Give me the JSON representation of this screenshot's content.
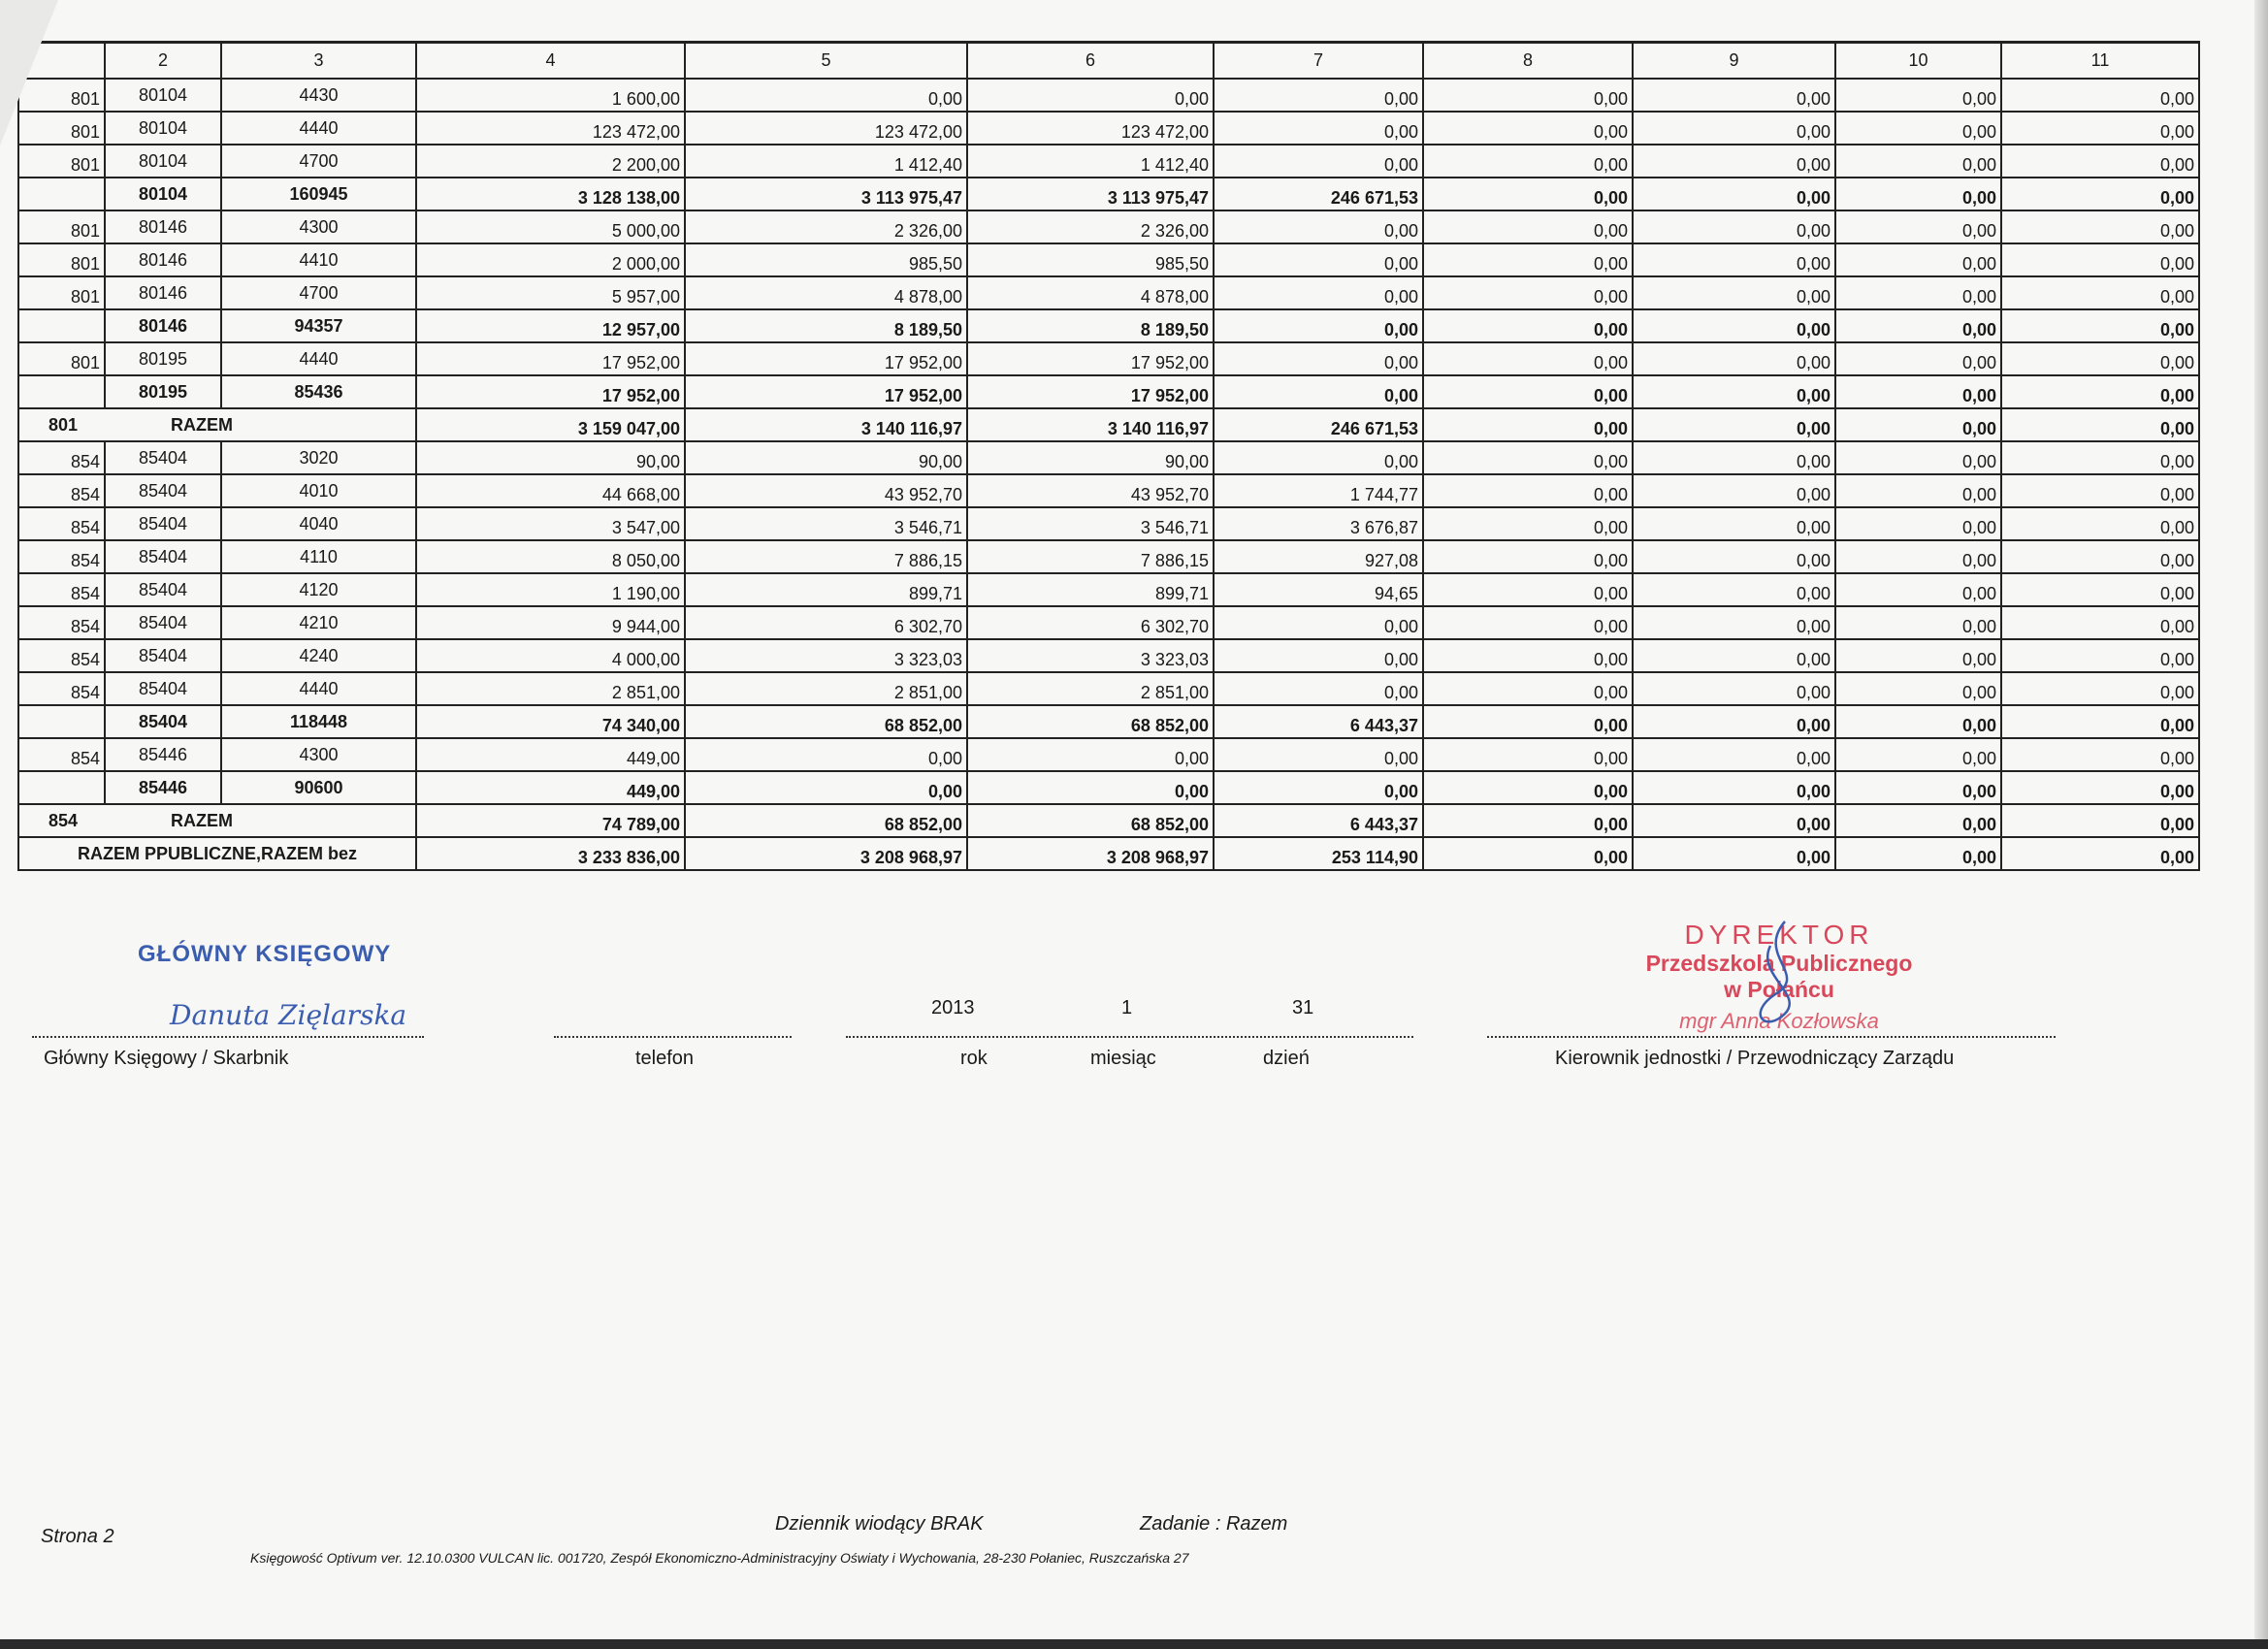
{
  "table": {
    "headers": [
      "2",
      "3",
      "4",
      "5",
      "6",
      "7",
      "8",
      "9",
      "10",
      "11"
    ],
    "rows": [
      {
        "kind": "item",
        "c1": "801",
        "c2": "80104",
        "c3": "4430",
        "v": [
          "1 600,00",
          "0,00",
          "0,00",
          "0,00",
          "0,00",
          "0,00",
          "0,00",
          "0,00"
        ]
      },
      {
        "kind": "item",
        "c1": "801",
        "c2": "80104",
        "c3": "4440",
        "v": [
          "123 472,00",
          "123 472,00",
          "123 472,00",
          "0,00",
          "0,00",
          "0,00",
          "0,00",
          "0,00"
        ]
      },
      {
        "kind": "item",
        "c1": "801",
        "c2": "80104",
        "c3": "4700",
        "v": [
          "2 200,00",
          "1 412,40",
          "1 412,40",
          "0,00",
          "0,00",
          "0,00",
          "0,00",
          "0,00"
        ]
      },
      {
        "kind": "sum",
        "c1": "",
        "c2": "80104",
        "c3": "160945",
        "v": [
          "3 128 138,00",
          "3 113 975,47",
          "3 113 975,47",
          "246 671,53",
          "0,00",
          "0,00",
          "0,00",
          "0,00"
        ]
      },
      {
        "kind": "item",
        "c1": "801",
        "c2": "80146",
        "c3": "4300",
        "v": [
          "5 000,00",
          "2 326,00",
          "2 326,00",
          "0,00",
          "0,00",
          "0,00",
          "0,00",
          "0,00"
        ]
      },
      {
        "kind": "item",
        "c1": "801",
        "c2": "80146",
        "c3": "4410",
        "v": [
          "2 000,00",
          "985,50",
          "985,50",
          "0,00",
          "0,00",
          "0,00",
          "0,00",
          "0,00"
        ]
      },
      {
        "kind": "item",
        "c1": "801",
        "c2": "80146",
        "c3": "4700",
        "v": [
          "5 957,00",
          "4 878,00",
          "4 878,00",
          "0,00",
          "0,00",
          "0,00",
          "0,00",
          "0,00"
        ]
      },
      {
        "kind": "sum",
        "c1": "",
        "c2": "80146",
        "c3": "94357",
        "v": [
          "12 957,00",
          "8 189,50",
          "8 189,50",
          "0,00",
          "0,00",
          "0,00",
          "0,00",
          "0,00"
        ]
      },
      {
        "kind": "item",
        "c1": "801",
        "c2": "80195",
        "c3": "4440",
        "v": [
          "17 952,00",
          "17 952,00",
          "17 952,00",
          "0,00",
          "0,00",
          "0,00",
          "0,00",
          "0,00"
        ]
      },
      {
        "kind": "sum",
        "c1": "",
        "c2": "80195",
        "c3": "85436",
        "v": [
          "17 952,00",
          "17 952,00",
          "17 952,00",
          "0,00",
          "0,00",
          "0,00",
          "0,00",
          "0,00"
        ]
      },
      {
        "kind": "razem",
        "c1": "801",
        "c2": "RAZEM",
        "v": [
          "3 159 047,00",
          "3 140 116,97",
          "3 140 116,97",
          "246 671,53",
          "0,00",
          "0,00",
          "0,00",
          "0,00"
        ]
      },
      {
        "kind": "item",
        "c1": "854",
        "c2": "85404",
        "c3": "3020",
        "v": [
          "90,00",
          "90,00",
          "90,00",
          "0,00",
          "0,00",
          "0,00",
          "0,00",
          "0,00"
        ]
      },
      {
        "kind": "item",
        "c1": "854",
        "c2": "85404",
        "c3": "4010",
        "v": [
          "44 668,00",
          "43 952,70",
          "43 952,70",
          "1 744,77",
          "0,00",
          "0,00",
          "0,00",
          "0,00"
        ]
      },
      {
        "kind": "item",
        "c1": "854",
        "c2": "85404",
        "c3": "4040",
        "v": [
          "3 547,00",
          "3 546,71",
          "3 546,71",
          "3 676,87",
          "0,00",
          "0,00",
          "0,00",
          "0,00"
        ]
      },
      {
        "kind": "item",
        "c1": "854",
        "c2": "85404",
        "c3": "4110",
        "v": [
          "8 050,00",
          "7 886,15",
          "7 886,15",
          "927,08",
          "0,00",
          "0,00",
          "0,00",
          "0,00"
        ]
      },
      {
        "kind": "item",
        "c1": "854",
        "c2": "85404",
        "c3": "4120",
        "v": [
          "1 190,00",
          "899,71",
          "899,71",
          "94,65",
          "0,00",
          "0,00",
          "0,00",
          "0,00"
        ]
      },
      {
        "kind": "item",
        "c1": "854",
        "c2": "85404",
        "c3": "4210",
        "v": [
          "9 944,00",
          "6 302,70",
          "6 302,70",
          "0,00",
          "0,00",
          "0,00",
          "0,00",
          "0,00"
        ]
      },
      {
        "kind": "item",
        "c1": "854",
        "c2": "85404",
        "c3": "4240",
        "v": [
          "4 000,00",
          "3 323,03",
          "3 323,03",
          "0,00",
          "0,00",
          "0,00",
          "0,00",
          "0,00"
        ]
      },
      {
        "kind": "item",
        "c1": "854",
        "c2": "85404",
        "c3": "4440",
        "v": [
          "2 851,00",
          "2 851,00",
          "2 851,00",
          "0,00",
          "0,00",
          "0,00",
          "0,00",
          "0,00"
        ]
      },
      {
        "kind": "sum",
        "c1": "",
        "c2": "85404",
        "c3": "118448",
        "v": [
          "74 340,00",
          "68 852,00",
          "68 852,00",
          "6 443,37",
          "0,00",
          "0,00",
          "0,00",
          "0,00"
        ]
      },
      {
        "kind": "item",
        "c1": "854",
        "c2": "85446",
        "c3": "4300",
        "v": [
          "449,00",
          "0,00",
          "0,00",
          "0,00",
          "0,00",
          "0,00",
          "0,00",
          "0,00"
        ]
      },
      {
        "kind": "sum",
        "c1": "",
        "c2": "85446",
        "c3": "90600",
        "v": [
          "449,00",
          "0,00",
          "0,00",
          "0,00",
          "0,00",
          "0,00",
          "0,00",
          "0,00"
        ]
      },
      {
        "kind": "razem",
        "c1": "854",
        "c2": "RAZEM",
        "v": [
          "74 789,00",
          "68 852,00",
          "68 852,00",
          "6 443,37",
          "0,00",
          "0,00",
          "0,00",
          "0,00"
        ]
      },
      {
        "kind": "total",
        "c1": "RAZEM PPUBLICZNE,RAZEM bez",
        "v": [
          "3 233 836,00",
          "3 208 968,97",
          "3 208 968,97",
          "253 114,90",
          "0,00",
          "0,00",
          "0,00",
          "0,00"
        ]
      }
    ]
  },
  "signatures": {
    "accountant_stamp": "GŁÓWNY KSIĘGOWY",
    "accountant_signature": "Danuta Zięlarska",
    "accountant_label": "Główny Księgowy / Skarbnik",
    "phone_label": "telefon",
    "year": "2013",
    "month": "1",
    "day": "31",
    "year_label": "rok",
    "month_label": "miesiąc",
    "day_label": "dzień",
    "director_stamp_line1": "DYREKTOR",
    "director_stamp_line2": "Przedszkola Publicznego",
    "director_stamp_line3": "w Połańcu",
    "director_stamp_name": "mgr Anna Kozłowska",
    "director_label": "Kierownik jednostki / Przewodniczący Zarządu"
  },
  "footer": {
    "page": "Strona 2",
    "journal": "Dziennik wiodący BRAK",
    "task": "Zadanie : Razem",
    "software": "Księgowość Optivum ver. 12.10.0300 VULCAN lic. 001720, Zespół Ekonomiczno-Administracyjny Oświaty i Wychowania, 28-230 Połaniec, Ruszczańska 27"
  },
  "colors": {
    "stamp_blue": "#3a5db0",
    "stamp_red": "#d8485a"
  }
}
